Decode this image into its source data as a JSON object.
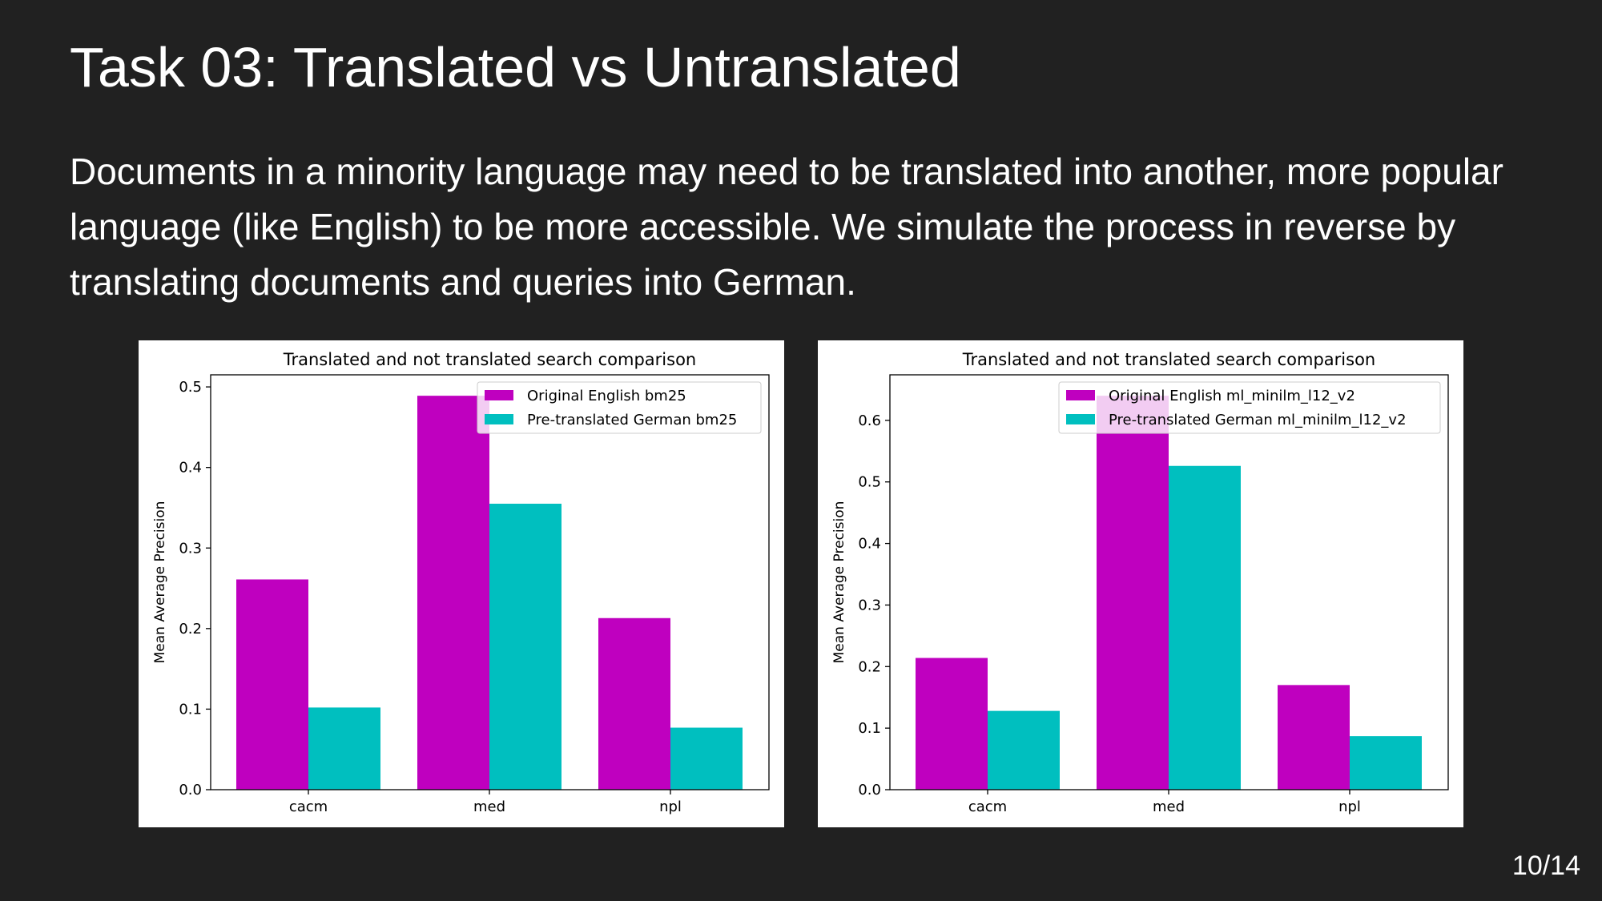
{
  "slide": {
    "title": "Task 03: Translated vs Untranslated",
    "body": "Documents in a minority language may need to be translated into another, more popular language (like English) to be more accessible. We simulate the process in reverse by translating documents and queries into German.",
    "page_number": "10/14"
  },
  "colors": {
    "background": "#212121",
    "text": "#ffffff",
    "series_original": "#bf00bf",
    "series_translated": "#00bfbf"
  },
  "chart_data": [
    {
      "type": "bar",
      "title": "Translated and not translated search comparison",
      "xlabel": "",
      "ylabel": "Mean Average Precision",
      "categories": [
        "cacm",
        "med",
        "npl"
      ],
      "ylim": [
        0,
        0.515
      ],
      "yticks": [
        "0.0",
        "0.1",
        "0.2",
        "0.3",
        "0.4",
        "0.5"
      ],
      "legend": "top-right",
      "grid": false,
      "series": [
        {
          "name": "Original English bm25",
          "color": "#bf00bf",
          "values": [
            0.261,
            0.489,
            0.213
          ]
        },
        {
          "name": "Pre-translated German bm25",
          "color": "#00bfbf",
          "values": [
            0.102,
            0.355,
            0.077
          ]
        }
      ]
    },
    {
      "type": "bar",
      "title": "Translated and not translated search comparison",
      "xlabel": "",
      "ylabel": "Mean Average Precision",
      "categories": [
        "cacm",
        "med",
        "npl"
      ],
      "ylim": [
        0,
        0.674
      ],
      "yticks": [
        "0.0",
        "0.1",
        "0.2",
        "0.3",
        "0.4",
        "0.5",
        "0.6"
      ],
      "legend": "top-right",
      "grid": false,
      "series": [
        {
          "name": "Original English ml_minilm_l12_v2",
          "color": "#bf00bf",
          "values": [
            0.214,
            0.64,
            0.17
          ]
        },
        {
          "name": "Pre-translated German ml_minilm_l12_v2",
          "color": "#00bfbf",
          "values": [
            0.128,
            0.526,
            0.087
          ]
        }
      ]
    }
  ]
}
